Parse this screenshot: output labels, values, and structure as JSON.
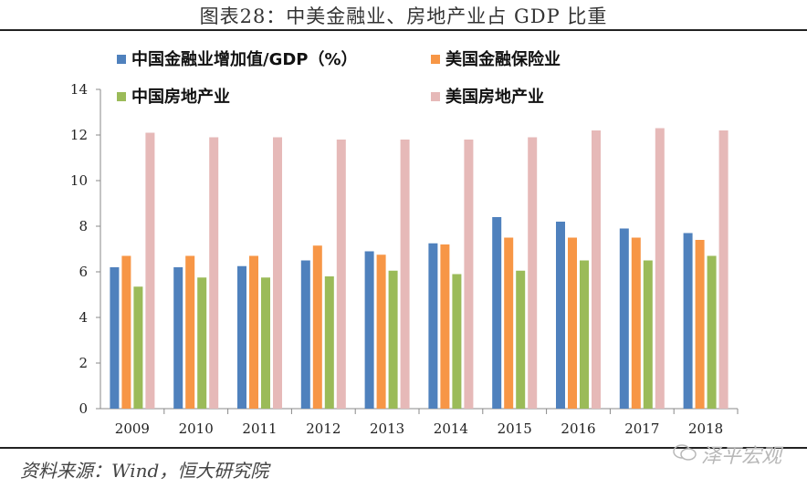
{
  "title": "图表28：中美金融业、房地产业占 GDP 比重",
  "source": "资料来源：Wind，恒大研究院",
  "watermark": "泽平宏观",
  "chart_data": {
    "type": "bar",
    "categories": [
      "2009",
      "2010",
      "2011",
      "2012",
      "2013",
      "2014",
      "2015",
      "2016",
      "2017",
      "2018"
    ],
    "series": [
      {
        "name": "中国金融业增加值/GDP（%）",
        "color": "#4f81bd",
        "values": [
          6.2,
          6.2,
          6.25,
          6.5,
          6.9,
          7.25,
          8.4,
          8.2,
          7.9,
          7.7
        ]
      },
      {
        "name": "美国金融保险业",
        "color": "#f79646",
        "values": [
          6.7,
          6.7,
          6.7,
          7.15,
          6.75,
          7.2,
          7.5,
          7.5,
          7.5,
          7.4
        ]
      },
      {
        "name": "中国房地产业",
        "color": "#9bbb59",
        "values": [
          5.35,
          5.75,
          5.75,
          5.8,
          6.05,
          5.9,
          6.05,
          6.5,
          6.5,
          6.7
        ]
      },
      {
        "name": "美国房地产业",
        "color": "#e6b9b8",
        "values": [
          12.1,
          11.9,
          11.9,
          11.8,
          11.8,
          11.8,
          11.9,
          12.2,
          12.3,
          12.2
        ]
      }
    ],
    "yticks": [
      "0",
      "2",
      "4",
      "6",
      "8",
      "10",
      "12",
      "14"
    ],
    "ylim": [
      0,
      14
    ],
    "legend_position": "top",
    "grid": false
  }
}
